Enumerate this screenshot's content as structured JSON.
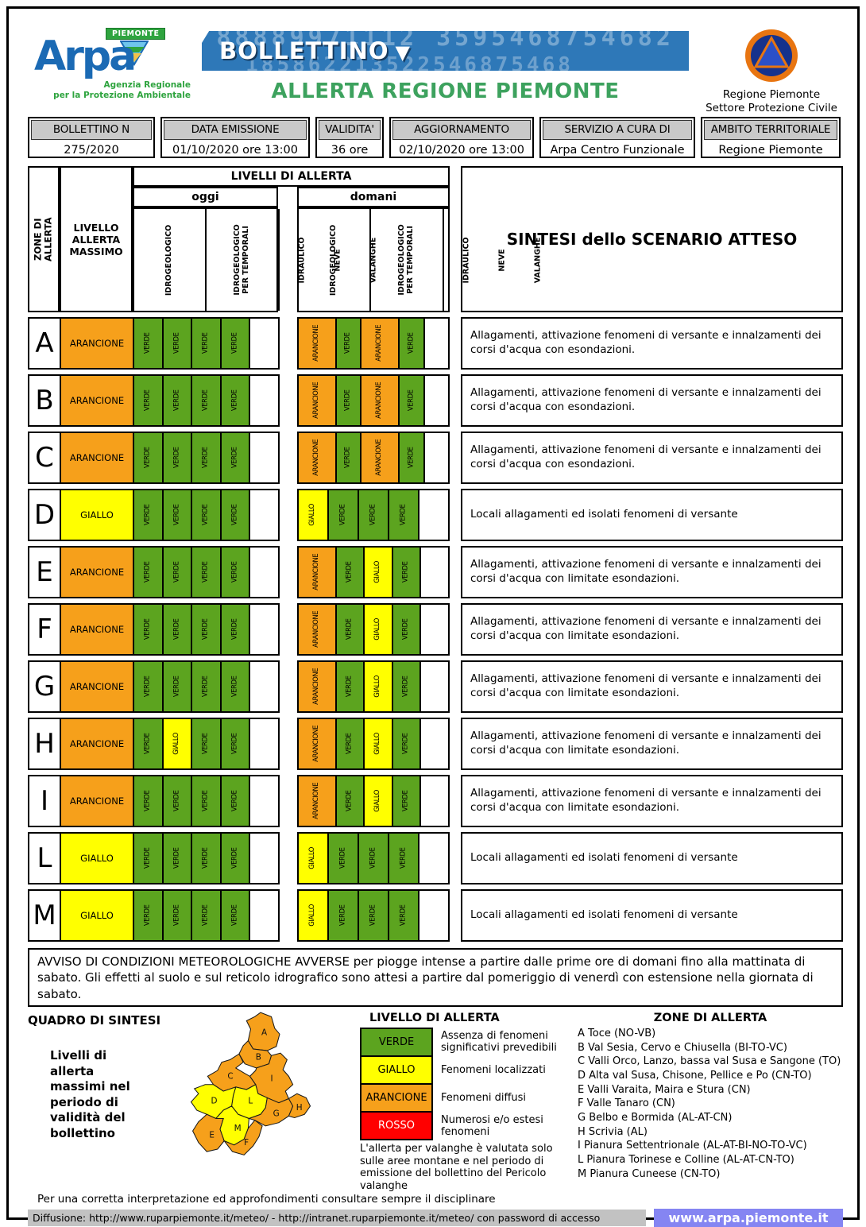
{
  "header": {
    "arpa": {
      "word": "Arpa",
      "tag": "PIEMONTE",
      "sub1": "Agenzia Regionale",
      "sub2": "per la Protezione Ambientale"
    },
    "banner": {
      "title": "BOLLETTINO",
      "arrow_icon": "▼",
      "digits_top": "88889971112 3595468754682",
      "digits_bottom": "185862213522546875468"
    },
    "title": "ALLERTA REGIONE PIEMONTE",
    "civil_protection": {
      "line1": "Regione Piemonte",
      "line2": "Settore Protezione Civile"
    }
  },
  "info_bar": [
    {
      "label": "BOLLETTINO N",
      "value": "275/2020"
    },
    {
      "label": "DATA EMISSIONE",
      "value": "01/10/2020 ore 13:00"
    },
    {
      "label": "VALIDITA'",
      "value": "36 ore"
    },
    {
      "label": "AGGIORNAMENTO",
      "value": "02/10/2020 ore 13:00"
    },
    {
      "label": "SERVIZIO A CURA DI",
      "value": "Arpa Centro Funzionale"
    },
    {
      "label": "AMBITO TERRITORIALE",
      "value": "Regione Piemonte"
    }
  ],
  "table": {
    "col_zone": "ZONE DI ALLERTA",
    "col_livello": "LIVELLO ALLERTA MASSIMO",
    "col_livelli": "LIVELLI DI ALLERTA",
    "col_oggi": "oggi",
    "col_domani": "domani",
    "col_sintesi": "SINTESI dello SCENARIO ATTESO",
    "hazard_cols": [
      "IDROGEOLOGICO",
      "IDROGEOLOGICO\nPER TEMPORALI",
      "IDRAULICO",
      "NEVE",
      "VALANGHE"
    ],
    "rows": [
      {
        "zone": "A",
        "max": "ARANCIONE",
        "oggi": [
          "VERDE",
          "VERDE",
          "VERDE",
          "VERDE",
          ""
        ],
        "domani": [
          "ARANCIONE",
          "VERDE",
          "ARANCIONE",
          "VERDE",
          ""
        ],
        "sintesi": "Allagamenti, attivazione fenomeni di versante e innalzamenti dei corsi d'acqua con esondazioni."
      },
      {
        "zone": "B",
        "max": "ARANCIONE",
        "oggi": [
          "VERDE",
          "VERDE",
          "VERDE",
          "VERDE",
          ""
        ],
        "domani": [
          "ARANCIONE",
          "VERDE",
          "ARANCIONE",
          "VERDE",
          ""
        ],
        "sintesi": "Allagamenti, attivazione fenomeni di versante e innalzamenti dei corsi d'acqua con esondazioni."
      },
      {
        "zone": "C",
        "max": "ARANCIONE",
        "oggi": [
          "VERDE",
          "VERDE",
          "VERDE",
          "VERDE",
          ""
        ],
        "domani": [
          "ARANCIONE",
          "VERDE",
          "ARANCIONE",
          "VERDE",
          ""
        ],
        "sintesi": "Allagamenti, attivazione fenomeni di versante e innalzamenti dei corsi d'acqua con esondazioni."
      },
      {
        "zone": "D",
        "max": "GIALLO",
        "oggi": [
          "VERDE",
          "VERDE",
          "VERDE",
          "VERDE",
          ""
        ],
        "domani": [
          "GIALLO",
          "VERDE",
          "VERDE",
          "VERDE",
          ""
        ],
        "sintesi": "Locali allagamenti ed isolati fenomeni di versante"
      },
      {
        "zone": "E",
        "max": "ARANCIONE",
        "oggi": [
          "VERDE",
          "VERDE",
          "VERDE",
          "VERDE",
          ""
        ],
        "domani": [
          "ARANCIONE",
          "VERDE",
          "GIALLO",
          "VERDE",
          ""
        ],
        "sintesi": "Allagamenti, attivazione fenomeni di versante e innalzamenti dei corsi d'acqua con limitate esondazioni."
      },
      {
        "zone": "F",
        "max": "ARANCIONE",
        "oggi": [
          "VERDE",
          "VERDE",
          "VERDE",
          "VERDE",
          ""
        ],
        "domani": [
          "ARANCIONE",
          "VERDE",
          "GIALLO",
          "VERDE",
          ""
        ],
        "sintesi": "Allagamenti, attivazione fenomeni di versante e innalzamenti dei corsi d'acqua con limitate esondazioni."
      },
      {
        "zone": "G",
        "max": "ARANCIONE",
        "oggi": [
          "VERDE",
          "VERDE",
          "VERDE",
          "VERDE",
          ""
        ],
        "domani": [
          "ARANCIONE",
          "VERDE",
          "GIALLO",
          "VERDE",
          ""
        ],
        "sintesi": "Allagamenti, attivazione fenomeni di versante e innalzamenti dei corsi d'acqua con limitate esondazioni."
      },
      {
        "zone": "H",
        "max": "ARANCIONE",
        "oggi": [
          "VERDE",
          "GIALLO",
          "VERDE",
          "VERDE",
          ""
        ],
        "domani": [
          "ARANCIONE",
          "VERDE",
          "GIALLO",
          "VERDE",
          ""
        ],
        "sintesi": "Allagamenti, attivazione fenomeni di versante e innalzamenti dei corsi d'acqua con limitate esondazioni."
      },
      {
        "zone": "I",
        "max": "ARANCIONE",
        "oggi": [
          "VERDE",
          "VERDE",
          "VERDE",
          "VERDE",
          ""
        ],
        "domani": [
          "ARANCIONE",
          "VERDE",
          "GIALLO",
          "VERDE",
          ""
        ],
        "sintesi": "Allagamenti, attivazione fenomeni di versante e innalzamenti dei corsi d'acqua con limitate esondazioni."
      },
      {
        "zone": "L",
        "max": "GIALLO",
        "oggi": [
          "VERDE",
          "VERDE",
          "VERDE",
          "VERDE",
          ""
        ],
        "domani": [
          "GIALLO",
          "VERDE",
          "VERDE",
          "VERDE",
          ""
        ],
        "sintesi": "Locali allagamenti ed isolati fenomeni di versante"
      },
      {
        "zone": "M",
        "max": "GIALLO",
        "oggi": [
          "VERDE",
          "VERDE",
          "VERDE",
          "VERDE",
          ""
        ],
        "domani": [
          "GIALLO",
          "VERDE",
          "VERDE",
          "VERDE",
          ""
        ],
        "sintesi": "Locali allagamenti ed isolati fenomeni di versante"
      }
    ]
  },
  "levels": {
    "VERDE": "#5CA41F",
    "GIALLO": "#FFFF00",
    "ARANCIONE": "#F6A01B",
    "ROSSO": "#FF0000"
  },
  "avviso": "AVVISO DI CONDIZIONI METEOROLOGICHE AVVERSE per piogge intense a partire dalle prime ore di domani fino alla mattinata di sabato. Gli effetti al suolo e sul reticolo idrografico sono attesi a partire dal pomeriggio di venerdì con estensione nella giornata di sabato.",
  "quadro": {
    "title": "QUADRO DI SINTESI",
    "caption": "Livelli di allerta massimi nel periodo di validità del bollettino"
  },
  "legend": {
    "title": "LIVELLO DI ALLERTA",
    "items": [
      {
        "label": "VERDE",
        "desc": "Assenza di fenomeni significativi prevedibili"
      },
      {
        "label": "GIALLO",
        "desc": "Fenomeni localizzati"
      },
      {
        "label": "ARANCIONE",
        "desc": "Fenomeni diffusi"
      },
      {
        "label": "ROSSO",
        "desc": "Numerosi e/o estesi fenomeni"
      }
    ],
    "note": "L'allerta per valanghe è valutata solo sulle aree montane e nel periodo di emissione del bollettino del Pericolo valanghe"
  },
  "zone_list": {
    "title": "ZONE DI ALLERTA",
    "items": [
      "A Toce (NO-VB)",
      "B Val Sesia, Cervo e Chiusella (BI-TO-VC)",
      "C Valli Orco, Lanzo, bassa val Susa e Sangone (TO)",
      "D Alta val Susa, Chisone, Pellice e Po (CN-TO)",
      "E Valli Varaita, Maira e Stura (CN)",
      "F Valle Tanaro (CN)",
      "G Belbo e Bormida (AL-AT-CN)",
      "H Scrivia (AL)",
      "I Pianura Settentrionale (AL-AT-BI-NO-TO-VC)",
      "L Pianura Torinese e Colline (AL-AT-CN-TO)",
      "M Pianura Cuneese (CN-TO)"
    ]
  },
  "footer": {
    "line1": "Per una corretta interpretazione ed approfondimenti consultare sempre il disciplinare",
    "diffusione": "Diffusione: http://www.ruparpiemonte.it/meteo/ - http://intranet.ruparpiemonte.it/meteo/ con password di accesso",
    "site": "www.arpa.piemonte.it"
  }
}
